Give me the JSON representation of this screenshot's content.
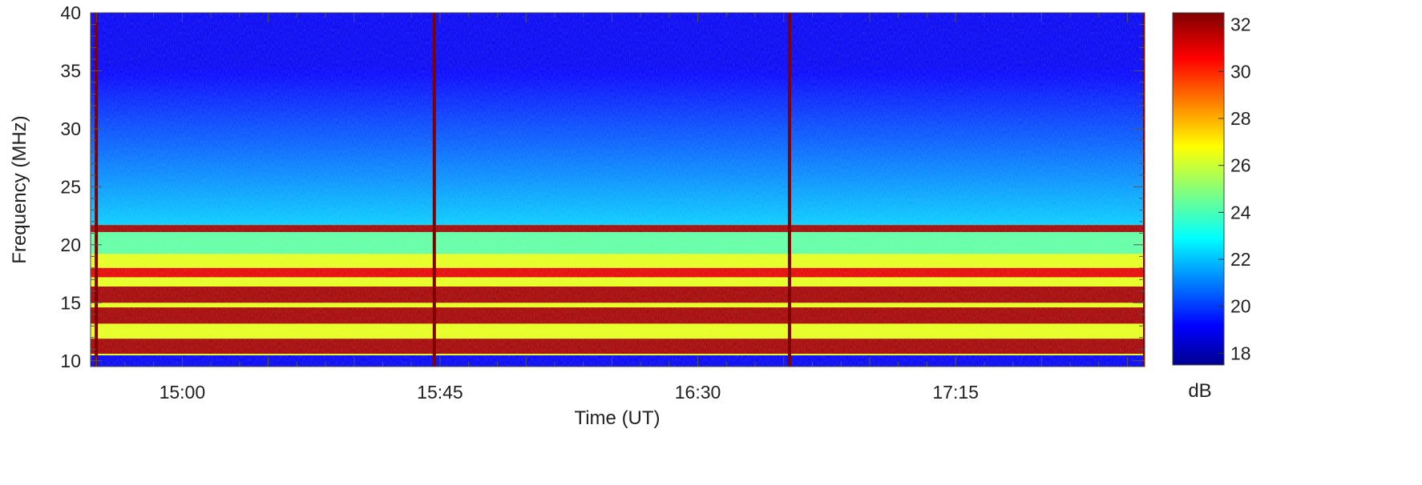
{
  "chart_data": {
    "type": "heatmap",
    "title": "",
    "xlabel": "Time (UT)",
    "ylabel": "Frequency (MHz)",
    "x_range": [
      "14:44",
      "17:48"
    ],
    "xticks": [
      "15:00",
      "15:45",
      "16:30",
      "17:15"
    ],
    "ylim": [
      9.5,
      40
    ],
    "yticks": [
      10,
      15,
      20,
      25,
      30,
      35,
      40
    ],
    "colorbar": {
      "label": "dB",
      "range": [
        17.5,
        32.5
      ],
      "ticks": [
        18,
        20,
        22,
        24,
        26,
        28,
        30,
        32
      ],
      "colormap": "jet"
    },
    "strong_bands_mhz": [
      {
        "from": 10.6,
        "to": 11.9,
        "level_db": 32
      },
      {
        "from": 13.2,
        "to": 14.6,
        "level_db": 32
      },
      {
        "from": 15.0,
        "to": 16.4,
        "level_db": 32
      },
      {
        "from": 17.2,
        "to": 18.0,
        "level_db": 31
      },
      {
        "from": 21.1,
        "to": 21.7,
        "level_db": 32
      }
    ],
    "broadband_bursts_ut": [
      "14:45",
      "15:44",
      "16:46",
      "17:48"
    ],
    "grid": false,
    "colors": {
      "min": "#00008f",
      "max": "#800000"
    }
  }
}
